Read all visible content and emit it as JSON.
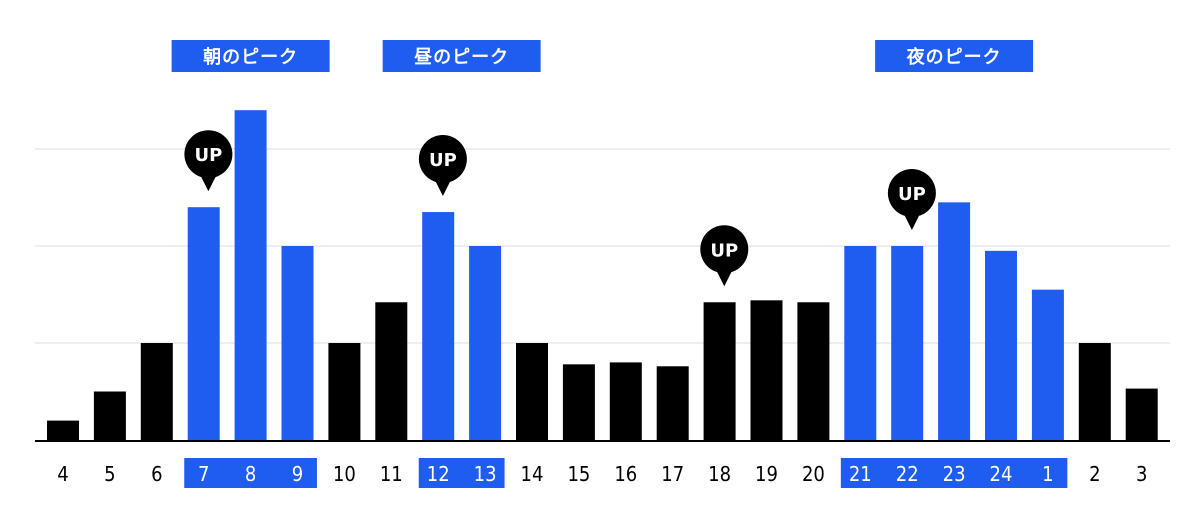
{
  "colors": {
    "peak": "#1f5cf0",
    "normal": "#000000",
    "grid": "#dcdcdc",
    "tick_on_peak": "#ffffff",
    "tick": "#000000"
  },
  "peak_labels": [
    {
      "text": "朝のピーク",
      "from": "7",
      "to": "9"
    },
    {
      "text": "昼のピーク",
      "from": "12",
      "to": "13"
    },
    {
      "text": "夜のピーク",
      "from": "21",
      "to": "1"
    }
  ],
  "chart_data": {
    "type": "bar",
    "categories": [
      "4",
      "5",
      "6",
      "7",
      "8",
      "9",
      "10",
      "11",
      "12",
      "13",
      "14",
      "15",
      "16",
      "17",
      "18",
      "19",
      "20",
      "21",
      "22",
      "23",
      "24",
      "1",
      "2",
      "3"
    ],
    "values": [
      0.2,
      0.5,
      1.0,
      2.4,
      3.4,
      2.0,
      1.0,
      1.42,
      2.35,
      2.0,
      1.0,
      0.78,
      0.8,
      0.76,
      1.42,
      1.44,
      1.42,
      2.0,
      2.0,
      2.45,
      1.95,
      1.55,
      1.0,
      0.53
    ],
    "highlighted": [
      "7",
      "8",
      "9",
      "12",
      "13",
      "21",
      "22",
      "23",
      "24",
      "1"
    ],
    "markers": [
      {
        "category": "7",
        "label": "UP"
      },
      {
        "category": "12",
        "label": "UP"
      },
      {
        "category": "18",
        "label": "UP"
      },
      {
        "category": "22",
        "label": "UP"
      }
    ],
    "ylim": [
      0,
      3.6
    ],
    "grid": true,
    "title": "",
    "xlabel": "",
    "ylabel": ""
  }
}
